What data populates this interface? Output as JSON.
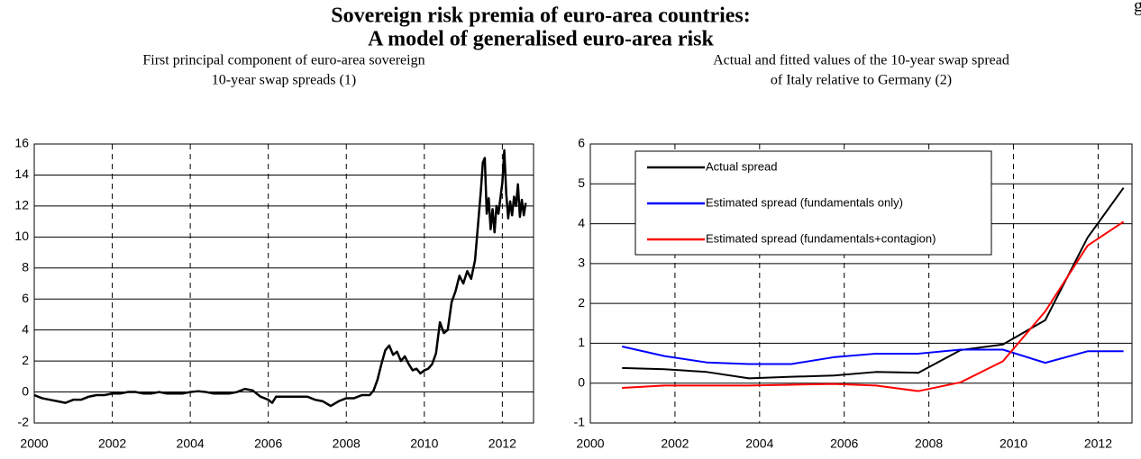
{
  "header": {
    "corner_label": "g",
    "title_lines": [
      "Sovereign risk premia of euro-area countries:",
      "A model of generalised euro-area risk"
    ]
  },
  "chart_data": [
    {
      "type": "line",
      "title_lines": [
        "First principal component of euro-area sovereign",
        "10-year swap spreads (1)"
      ],
      "x": [
        2000.0,
        2000.2,
        2000.4,
        2000.6,
        2000.8,
        2001.0,
        2001.2,
        2001.4,
        2001.6,
        2001.8,
        2002.0,
        2002.2,
        2002.4,
        2002.6,
        2002.8,
        2003.0,
        2003.2,
        2003.4,
        2003.6,
        2003.8,
        2004.0,
        2004.2,
        2004.4,
        2004.6,
        2004.8,
        2005.0,
        2005.2,
        2005.4,
        2005.6,
        2005.8,
        2006.0,
        2006.1,
        2006.2,
        2006.4,
        2006.6,
        2006.8,
        2007.0,
        2007.2,
        2007.4,
        2007.6,
        2007.8,
        2008.0,
        2008.2,
        2008.4,
        2008.6,
        2008.7,
        2008.8,
        2008.9,
        2009.0,
        2009.1,
        2009.2,
        2009.3,
        2009.4,
        2009.5,
        2009.6,
        2009.7,
        2009.8,
        2009.9,
        2010.0,
        2010.1,
        2010.2,
        2010.3,
        2010.35,
        2010.4,
        2010.5,
        2010.6,
        2010.7,
        2010.8,
        2010.9,
        2011.0,
        2011.1,
        2011.2,
        2011.3,
        2011.35,
        2011.4,
        2011.45,
        2011.5,
        2011.55,
        2011.6,
        2011.65,
        2011.7,
        2011.75,
        2011.8,
        2011.85,
        2011.9,
        2011.95,
        2012.0,
        2012.05,
        2012.1,
        2012.15,
        2012.2,
        2012.25,
        2012.3,
        2012.35,
        2012.4,
        2012.45,
        2012.5,
        2012.55,
        2012.6
      ],
      "series": [
        {
          "color": "#000000",
          "values": [
            -0.2,
            -0.4,
            -0.5,
            -0.6,
            -0.7,
            -0.5,
            -0.5,
            -0.3,
            -0.2,
            -0.2,
            -0.1,
            -0.1,
            0.0,
            0.0,
            -0.1,
            -0.1,
            0.0,
            -0.1,
            -0.1,
            -0.1,
            0.0,
            0.05,
            0.0,
            -0.1,
            -0.1,
            -0.1,
            0.0,
            0.2,
            0.1,
            -0.3,
            -0.5,
            -0.7,
            -0.3,
            -0.3,
            -0.3,
            -0.3,
            -0.3,
            -0.5,
            -0.6,
            -0.9,
            -0.6,
            -0.4,
            -0.4,
            -0.2,
            -0.2,
            0.1,
            0.8,
            1.8,
            2.7,
            3.0,
            2.4,
            2.6,
            2.0,
            2.3,
            1.8,
            1.4,
            1.5,
            1.2,
            1.4,
            1.5,
            1.8,
            2.5,
            3.5,
            4.5,
            3.8,
            4.0,
            5.8,
            6.5,
            7.5,
            7.0,
            7.8,
            7.3,
            8.5,
            10.0,
            11.5,
            13.0,
            14.8,
            15.1,
            11.5,
            12.5,
            10.5,
            11.8,
            10.3,
            12.0,
            11.5,
            12.5,
            13.5,
            15.6,
            12.8,
            11.2,
            12.3,
            11.4,
            12.6,
            12.0,
            13.4,
            11.3,
            12.4,
            11.4,
            12.2
          ]
        }
      ],
      "xlim": [
        2000,
        2012.8
      ],
      "xticks": [
        2000,
        2002,
        2004,
        2006,
        2008,
        2010,
        2012
      ],
      "ylim": [
        -2,
        16
      ],
      "yticks": [
        -2,
        0,
        2,
        4,
        6,
        8,
        10,
        12,
        14,
        16
      ],
      "grid": true
    },
    {
      "type": "line",
      "title_lines": [
        "Actual and fitted values of the 10-year swap spread",
        "of Italy relative to Germany (2)"
      ],
      "x": [
        2000.75,
        2001.75,
        2002.75,
        2003.75,
        2004.75,
        2005.75,
        2006.75,
        2007.75,
        2008.75,
        2009.75,
        2010.75,
        2011.75,
        2012.6
      ],
      "series": [
        {
          "name": "Actual spread",
          "color": "#000000",
          "values": [
            0.38,
            0.35,
            0.28,
            0.12,
            0.16,
            0.19,
            0.28,
            0.26,
            0.83,
            0.97,
            1.58,
            3.65,
            4.9
          ]
        },
        {
          "name": "Estimated spread (fundamentals only)",
          "color": "#0000ff",
          "values": [
            0.92,
            0.68,
            0.52,
            0.48,
            0.48,
            0.65,
            0.74,
            0.74,
            0.84,
            0.84,
            0.51,
            0.8,
            0.8
          ]
        },
        {
          "name": "Estimated spread (fundamentals+contagion)",
          "color": "#ff0000",
          "values": [
            -0.12,
            -0.06,
            -0.06,
            -0.06,
            -0.04,
            -0.02,
            -0.06,
            -0.2,
            0.02,
            0.55,
            1.8,
            3.45,
            4.05
          ]
        }
      ],
      "xlim": [
        2000,
        2012.8
      ],
      "xticks": [
        2000,
        2002,
        2004,
        2006,
        2008,
        2010,
        2012
      ],
      "ylim": [
        -1,
        6
      ],
      "yticks": [
        -1,
        0,
        1,
        2,
        3,
        4,
        5,
        6
      ],
      "grid": true,
      "legend": "upper left"
    }
  ]
}
